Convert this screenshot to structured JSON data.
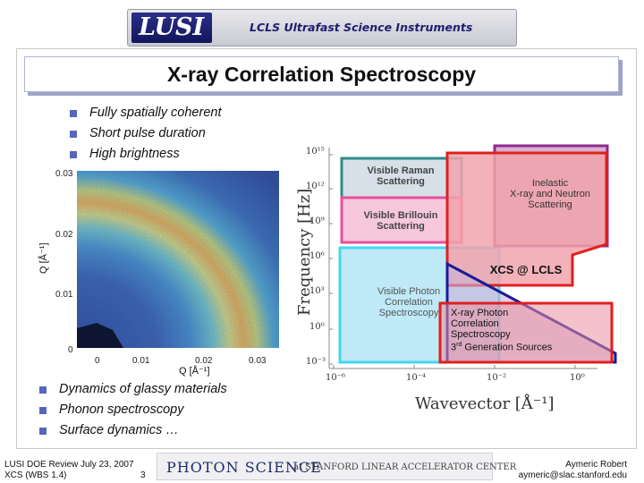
{
  "banner": {
    "logo": "LUSI",
    "subtitle": "LCLS Ultrafast Science Instruments"
  },
  "title": "X-ray Correlation Spectroscopy",
  "bullets_top": [
    "Fully  spatially coherent",
    "Short pulse duration",
    "High brightness"
  ],
  "bullets_bottom": [
    "Dynamics of glassy materials",
    "Phonon spectroscopy",
    "Surface dynamics …"
  ],
  "speckle_plot": {
    "ylabel": "Q [Å⁻¹]",
    "xlabel": "Q [Å⁻¹]",
    "y_ticks": [
      "0.03",
      "0.02",
      "0.01",
      "0"
    ],
    "x_ticks": [
      "0",
      "0.01",
      "0.02",
      "0.03"
    ]
  },
  "diagram": {
    "ylabel": "Frequency [Hz]",
    "xlabel": "Wavevector [Å⁻¹]",
    "y_ticks": [
      "10¹⁵",
      "10¹²",
      "10⁹",
      "10⁶",
      "10³",
      "10⁰",
      "10⁻³"
    ],
    "x_ticks": [
      "10⁻⁶",
      "10⁻⁴",
      "10⁻²",
      "10⁰"
    ],
    "regions": {
      "raman": "Visible Raman\nScattering",
      "brillouin": "Visible Brillouin\nScattering",
      "inelastic": "Inelastic\nX-ray and Neutron\nScattering",
      "xcs_lcls": "XCS @ LCLS",
      "vpcs": "Visible Photon\nCorrelation\nSpectroscopy",
      "xpcs_prefix": "X-ray Photon\nCorrelation\nSpectroscopy\n3",
      "xpcs_sup": "rd",
      "xpcs_suffix": " Generation Sources"
    },
    "colors": {
      "raman": "#2e8b8b",
      "brillouin": "#e8509c",
      "inelastic": "#8e2a8e",
      "red": "#e0201f",
      "cyan": "#42d8ee",
      "navy": "#1a1a9a"
    }
  },
  "footer": {
    "left_line1": "LUSI DOE Review July 23, 2007",
    "left_line2": "XCS (WBS 1.4)",
    "page": "3",
    "center_main": "PHOTON SCIENCE",
    "center_at": "at  STANFORD LINEAR ACCELERATOR CENTER",
    "right_name": "Aymeric Robert",
    "right_email": "aymeric@slac.stanford.edu"
  }
}
